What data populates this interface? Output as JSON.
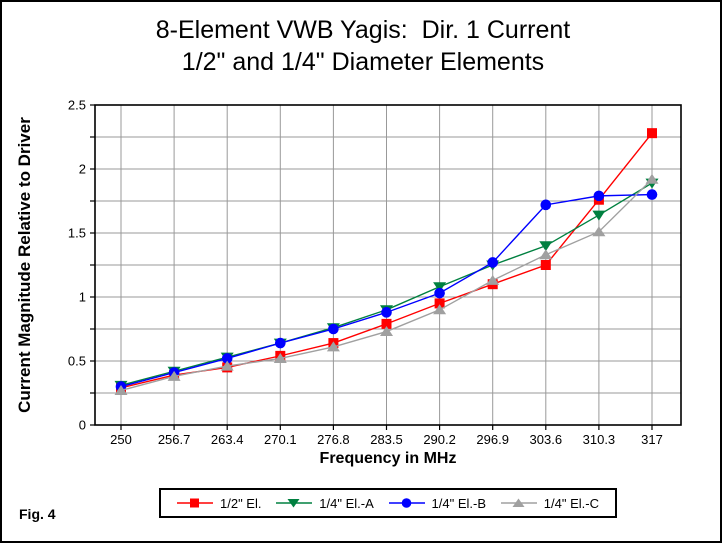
{
  "figure_label": "Fig. 4",
  "title_line1": "8-Element VWB Yagis:  Dir. 1 Current",
  "title_line2": "1/2\" and 1/4\" Diameter Elements",
  "chart_data": {
    "type": "line",
    "title": "8-Element VWB Yagis: Dir. 1 Current — 1/2\" and 1/4\" Diameter Elements",
    "xlabel": "Frequency in MHz",
    "ylabel": "Current Magnitude Relative to Driver",
    "x": [
      250,
      256.7,
      263.4,
      270.1,
      276.8,
      283.5,
      290.2,
      296.9,
      303.6,
      310.3,
      317
    ],
    "x_tick_labels": [
      "250",
      "256.7",
      "263.4",
      "270.1",
      "276.8",
      "283.5",
      "290.2",
      "296.9",
      "303.6",
      "310.3",
      "317"
    ],
    "ylim": [
      0,
      2.5
    ],
    "y_tick_labels": [
      "0",
      "0.5",
      "1",
      "1.5",
      "2",
      "2.5"
    ],
    "y_labeled_step": 0.5,
    "y_gridline_step": 0.25,
    "grid": true,
    "legend_position": "bottom",
    "series": [
      {
        "name": "1/2\" El.",
        "marker": "square",
        "color": "#ff0000",
        "values": [
          0.29,
          0.39,
          0.45,
          0.54,
          0.64,
          0.79,
          0.95,
          1.1,
          1.25,
          1.76,
          2.28
        ]
      },
      {
        "name": "1/4\" El.-A",
        "marker": "triangle-down",
        "color": "#008040",
        "values": [
          0.31,
          0.42,
          0.53,
          0.64,
          0.76,
          0.9,
          1.08,
          1.25,
          1.4,
          1.64,
          1.89
        ]
      },
      {
        "name": "1/4\" El.-B",
        "marker": "circle",
        "color": "#0000ff",
        "values": [
          0.3,
          0.41,
          0.52,
          0.64,
          0.75,
          0.88,
          1.03,
          1.27,
          1.72,
          1.79,
          1.8
        ]
      },
      {
        "name": "1/4\" El.-C",
        "marker": "triangle-up",
        "color": "#a0a0a0",
        "values": [
          0.27,
          0.38,
          0.46,
          0.52,
          0.61,
          0.73,
          0.9,
          1.13,
          1.33,
          1.51,
          1.92
        ]
      }
    ]
  },
  "colors": {
    "background": "#ffffff",
    "axis": "#000000",
    "gridline": "#999999",
    "text": "#000000"
  }
}
